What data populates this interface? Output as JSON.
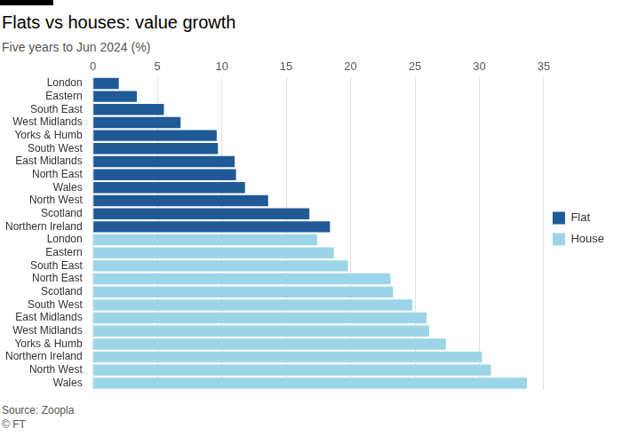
{
  "chart_data": {
    "type": "bar",
    "title": "Flats vs houses: value growth",
    "subtitle": "Five years to Jun 2024 (%)",
    "source": "Source: Zoopla",
    "credit": "© FT",
    "orientation": "horizontal",
    "grid": true,
    "legend": "right",
    "categories": [
      "London",
      "Eastern",
      "South East",
      "West Midlands",
      "Yorks & Humb",
      "South West",
      "East Midlands",
      "North East",
      "Wales",
      "North West",
      "Scotland",
      "Northern Ireland",
      "London",
      "Eastern",
      "South East",
      "North East",
      "Scotland",
      "South West",
      "East Midlands",
      "West Midlands",
      "Yorks & Humb",
      "Northern Ireland",
      "North West",
      "Wales"
    ],
    "series": [
      {
        "name": "Flat",
        "color": "#1f5a96",
        "values": [
          2.0,
          3.4,
          5.5,
          6.8,
          9.6,
          9.7,
          11.0,
          11.1,
          11.8,
          13.6,
          16.8,
          18.4,
          null,
          null,
          null,
          null,
          null,
          null,
          null,
          null,
          null,
          null,
          null,
          null
        ]
      },
      {
        "name": "House",
        "color": "#9dd5e8",
        "values": [
          null,
          null,
          null,
          null,
          null,
          null,
          null,
          null,
          null,
          null,
          null,
          null,
          17.4,
          18.7,
          19.8,
          23.1,
          23.3,
          24.8,
          25.9,
          26.1,
          27.4,
          30.2,
          30.9,
          33.7
        ]
      }
    ],
    "xlim": [
      0,
      35
    ],
    "xticks": [
      0,
      5,
      10,
      15,
      20,
      25,
      30,
      35
    ]
  }
}
